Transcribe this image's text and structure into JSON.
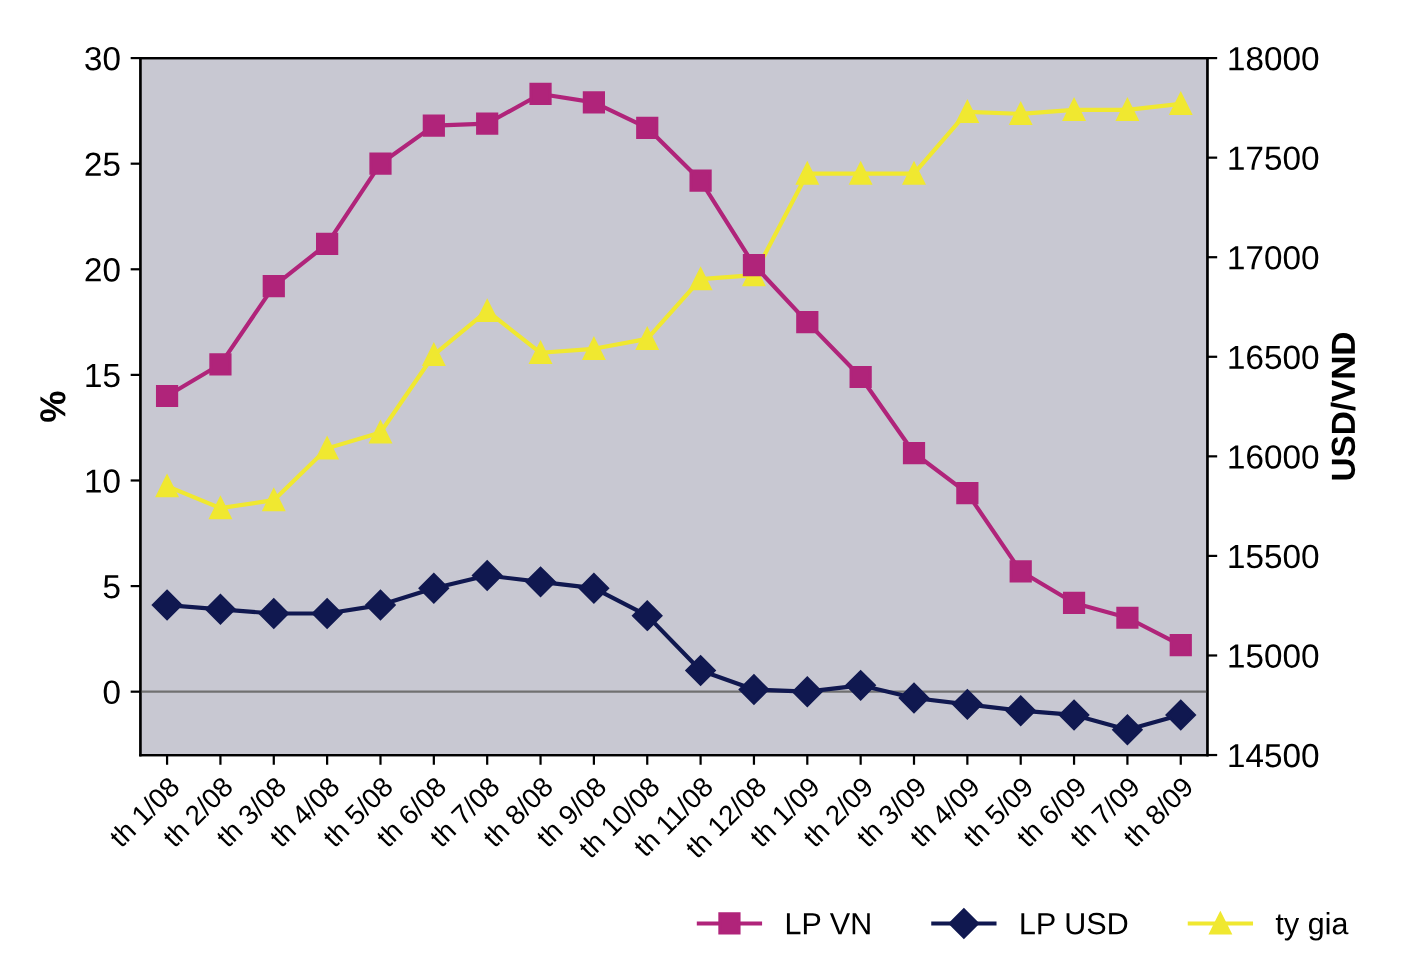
{
  "chart_data": {
    "type": "line",
    "ylabel": "%",
    "y2label": "USD/VND",
    "categories": [
      "th 1/08",
      "th 2/08",
      "th 3/08",
      "th 4/08",
      "th 5/08",
      "th 6/08",
      "th 7/08",
      "th 8/08",
      "th 9/08",
      "th 10/08",
      "th 11/08",
      "th 12/08",
      "th 1/09",
      "th 2/09",
      "th 3/09",
      "th 4/09",
      "th 5/09",
      "th 6/09",
      "th 7/09",
      "th 8/09"
    ],
    "series": [
      {
        "name": "LP VN",
        "color": "#b0247a",
        "marker": "square",
        "values": [
          14,
          15.5,
          19.2,
          21.2,
          25,
          26.8,
          26.9,
          28.3,
          27.9,
          26.7,
          24.2,
          20.2,
          17.5,
          14.9,
          11.3,
          9.4,
          5.7,
          4.2,
          3.5,
          2.2
        ]
      },
      {
        "name": "LP USD",
        "color": "#101850",
        "marker": "diamond",
        "values": [
          4.1,
          3.9,
          3.7,
          3.7,
          4.1,
          4.9,
          5.5,
          5.2,
          4.9,
          3.6,
          1.0,
          0.1,
          0.0,
          0.3,
          -0.3,
          -0.6,
          -0.9,
          -1.1,
          -1.8,
          -1.1
        ]
      },
      {
        "name": "ty gia",
        "color": "#f0e830",
        "marker": "triangle",
        "axis": "y2",
        "values": [
          15850,
          15740,
          15780,
          16040,
          16120,
          16510,
          16730,
          16520,
          16540,
          16590,
          16890,
          16910,
          17420,
          17420,
          17420,
          17730,
          17720,
          17740,
          17740,
          17770
        ]
      }
    ],
    "ylim": [
      -3,
      30
    ],
    "yticks": [
      0,
      5,
      10,
      15,
      20,
      25,
      30
    ],
    "y2lim": [
      14500,
      18000
    ],
    "y2ticks": [
      14500,
      15000,
      15500,
      16000,
      16500,
      17000,
      17500,
      18000
    ],
    "ref_lines": [
      {
        "axis": "y",
        "value": 0,
        "color": "#707070"
      }
    ],
    "legend": "bottom right",
    "grid": false
  }
}
